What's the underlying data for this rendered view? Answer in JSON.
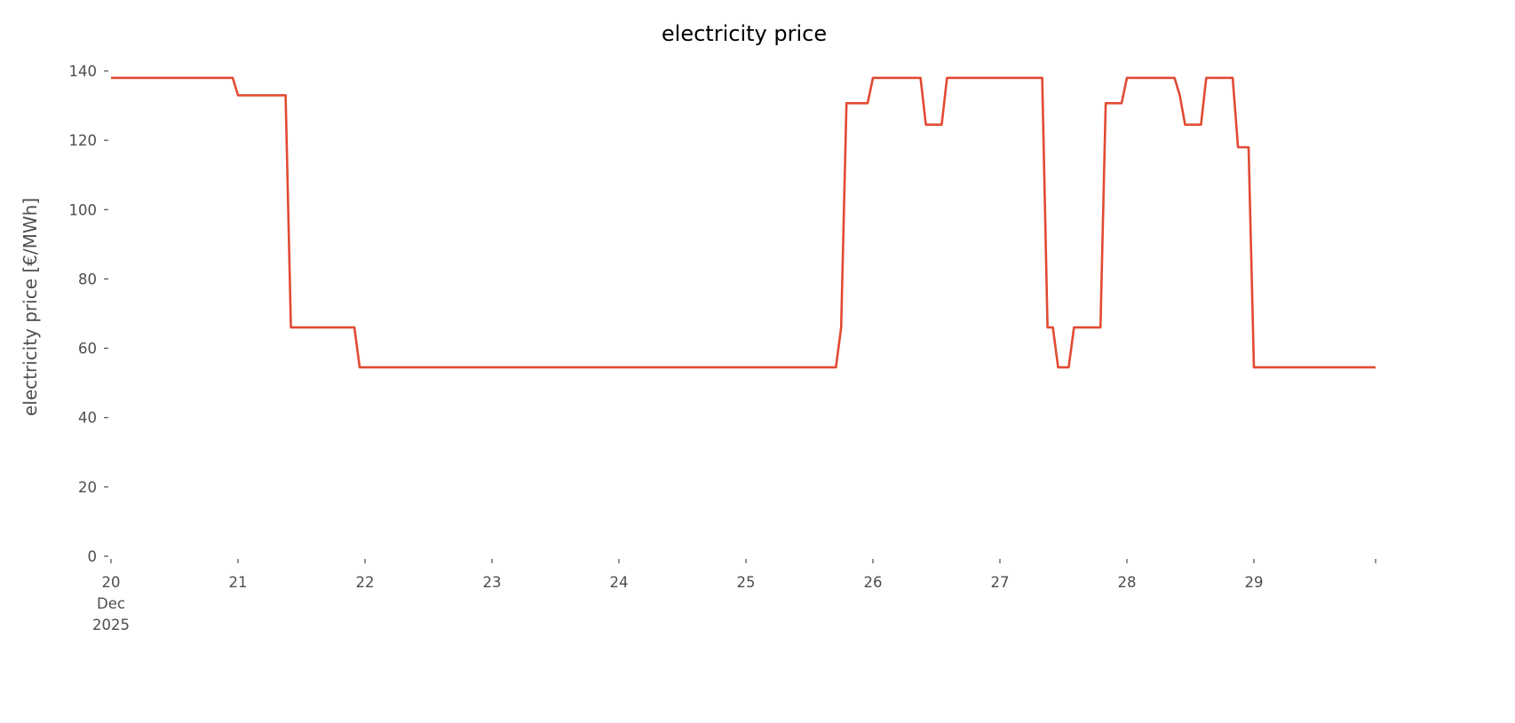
{
  "chart_data": {
    "type": "line",
    "title": "electricity price",
    "xlabel": "",
    "ylabel": "electricity price [€/MWh]",
    "ylim": [
      0,
      140
    ],
    "xlim": [
      "2025-12-20 00:00",
      "2025-12-29 23:00"
    ],
    "grid": false,
    "line_color": "#e24a33",
    "y_ticks": [
      0,
      20,
      40,
      60,
      80,
      100,
      120,
      140
    ],
    "x_ticks": [
      {
        "date": "2025-12-20",
        "label": [
          "20",
          "Dec",
          "2025"
        ]
      },
      {
        "date": "2025-12-21",
        "label": [
          "21"
        ]
      },
      {
        "date": "2025-12-22",
        "label": [
          "22"
        ]
      },
      {
        "date": "2025-12-23",
        "label": [
          "23"
        ]
      },
      {
        "date": "2025-12-24",
        "label": [
          "24"
        ]
      },
      {
        "date": "2025-12-25",
        "label": [
          "25"
        ]
      },
      {
        "date": "2025-12-26",
        "label": [
          "26"
        ]
      },
      {
        "date": "2025-12-27",
        "label": [
          "27"
        ]
      },
      {
        "date": "2025-12-28",
        "label": [
          "28"
        ]
      },
      {
        "date": "2025-12-29",
        "label": [
          "29"
        ]
      },
      {
        "date": "2025-12-29 23:00",
        "label": []
      }
    ],
    "series": [
      {
        "points": [
          [
            "2025-12-20 00:00",
            138
          ],
          [
            "2025-12-20 23:00",
            138
          ],
          [
            "2025-12-21 00:00",
            133
          ],
          [
            "2025-12-21 09:00",
            133
          ],
          [
            "2025-12-21 10:00",
            66
          ],
          [
            "2025-12-21 22:00",
            66
          ],
          [
            "2025-12-21 23:00",
            54.5
          ],
          [
            "2025-12-25 17:00",
            54.5
          ],
          [
            "2025-12-25 18:00",
            66
          ],
          [
            "2025-12-25 19:00",
            130.7
          ],
          [
            "2025-12-25 23:00",
            130.7
          ],
          [
            "2025-12-26 00:00",
            138
          ],
          [
            "2025-12-26 09:00",
            138
          ],
          [
            "2025-12-26 10:00",
            124.5
          ],
          [
            "2025-12-26 13:00",
            124.5
          ],
          [
            "2025-12-26 14:00",
            138
          ],
          [
            "2025-12-27 08:00",
            138
          ],
          [
            "2025-12-27 09:00",
            66
          ],
          [
            "2025-12-27 10:00",
            66
          ],
          [
            "2025-12-27 11:00",
            54.5
          ],
          [
            "2025-12-27 13:00",
            54.5
          ],
          [
            "2025-12-27 14:00",
            66
          ],
          [
            "2025-12-27 19:00",
            66
          ],
          [
            "2025-12-27 20:00",
            130.7
          ],
          [
            "2025-12-27 23:00",
            130.7
          ],
          [
            "2025-12-28 00:00",
            138
          ],
          [
            "2025-12-28 09:00",
            138
          ],
          [
            "2025-12-28 10:00",
            133
          ],
          [
            "2025-12-28 11:00",
            124.5
          ],
          [
            "2025-12-28 14:00",
            124.5
          ],
          [
            "2025-12-28 15:00",
            138
          ],
          [
            "2025-12-28 20:00",
            138
          ],
          [
            "2025-12-28 21:00",
            118
          ],
          [
            "2025-12-28 23:00",
            118
          ],
          [
            "2025-12-29 00:00",
            54.5
          ],
          [
            "2025-12-29 23:00",
            54.5
          ]
        ]
      }
    ]
  }
}
